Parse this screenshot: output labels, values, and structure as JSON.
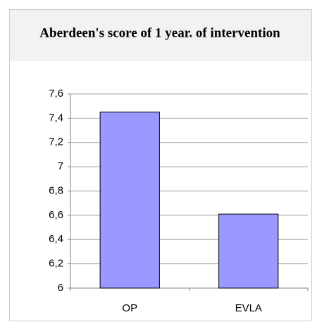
{
  "chart_data": {
    "type": "bar",
    "title": "Aberdeen's score of 1 year. of intervention",
    "categories": [
      "OP",
      "EVLA"
    ],
    "values": [
      7.45,
      6.61
    ],
    "color": "#9999ff",
    "ylim": [
      6,
      7.6
    ],
    "yticks": [
      6,
      {
        "value": 6.2,
        "label": "6,2"
      },
      {
        "value": 6.4,
        "label": "6,4"
      },
      {
        "value": 6.6,
        "label": "6,6"
      },
      {
        "value": 6.8,
        "label": "6,8"
      },
      7,
      {
        "value": 7.2,
        "label": "7,2"
      },
      {
        "value": 7.4,
        "label": "7,4"
      },
      {
        "value": 7.6,
        "label": "7,6"
      }
    ],
    "grid": true
  }
}
